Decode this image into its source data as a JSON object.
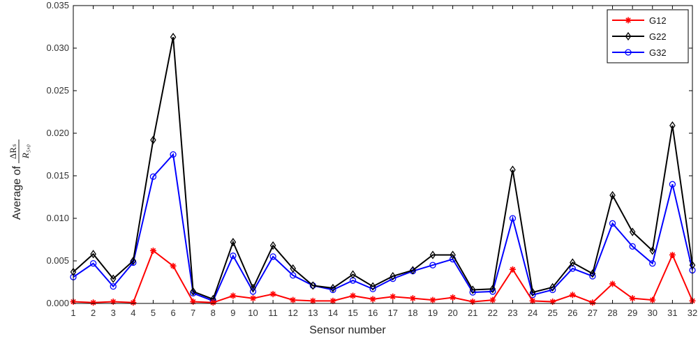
{
  "chart_data": {
    "type": "line",
    "title": "",
    "xlabel": "Sensor number",
    "ylabel": {
      "prefix": "Average of",
      "numerator": "ΔRₛ",
      "denominator": "R₅,₀"
    },
    "x": [
      1,
      2,
      3,
      4,
      5,
      6,
      7,
      8,
      9,
      10,
      11,
      12,
      13,
      14,
      15,
      16,
      17,
      18,
      19,
      20,
      21,
      22,
      23,
      24,
      25,
      26,
      27,
      28,
      29,
      30,
      31,
      32
    ],
    "xlim": [
      1,
      32
    ],
    "ylim": [
      0,
      0.035
    ],
    "yticks": [
      "0.000",
      "0.005",
      "0.010",
      "0.015",
      "0.020",
      "0.025",
      "0.030",
      "0.035"
    ],
    "legend_position": "top-right",
    "series": [
      {
        "name": "G12",
        "color": "#ff0000",
        "marker": "star",
        "values": [
          0.0002,
          0.0001,
          0.0002,
          0.0001,
          0.0062,
          0.0044,
          0.0002,
          0.0001,
          0.0009,
          0.0006,
          0.0011,
          0.0004,
          0.0003,
          0.0003,
          0.0009,
          0.0005,
          0.0008,
          0.0006,
          0.0004,
          0.0007,
          0.0002,
          0.0004,
          0.004,
          0.0003,
          0.0002,
          0.001,
          0.0001,
          0.0023,
          0.0006,
          0.0004,
          0.0057,
          0.0003
        ]
      },
      {
        "name": "G22",
        "color": "#000000",
        "marker": "diamond",
        "values": [
          0.0037,
          0.0058,
          0.0029,
          0.005,
          0.0192,
          0.0313,
          0.0014,
          0.0005,
          0.0072,
          0.0018,
          0.0068,
          0.0041,
          0.0021,
          0.0018,
          0.0034,
          0.002,
          0.0032,
          0.0039,
          0.0057,
          0.0057,
          0.0016,
          0.0017,
          0.0157,
          0.0013,
          0.0019,
          0.0048,
          0.0035,
          0.0127,
          0.0084,
          0.0062,
          0.0209,
          0.0045
        ]
      },
      {
        "name": "G32",
        "color": "#0000ff",
        "marker": "circle",
        "values": [
          0.0031,
          0.0047,
          0.002,
          0.0048,
          0.0149,
          0.0175,
          0.0012,
          0.0003,
          0.0056,
          0.0014,
          0.0055,
          0.0033,
          0.0021,
          0.0016,
          0.0027,
          0.0017,
          0.0029,
          0.0038,
          0.0045,
          0.0052,
          0.0013,
          0.0014,
          0.01,
          0.001,
          0.0016,
          0.0041,
          0.0032,
          0.0094,
          0.0067,
          0.0047,
          0.014,
          0.0039
        ]
      }
    ]
  }
}
